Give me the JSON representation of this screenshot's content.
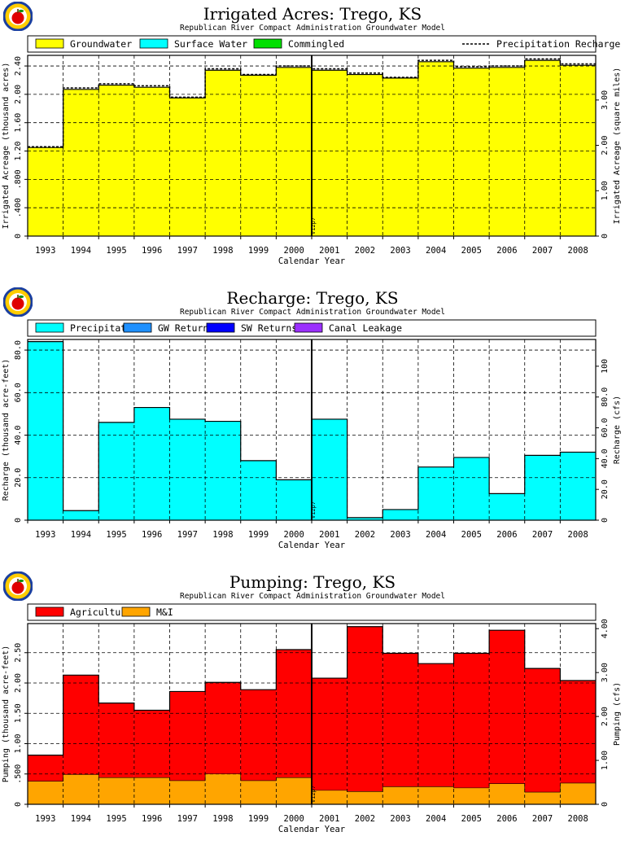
{
  "colors": {
    "groundwater": "#ffff00",
    "surface_water": "#00ffff",
    "commingled": "#00e000",
    "precipitation": "#00ffff",
    "gw_returns": "#1e90ff",
    "sw_returns": "#0000ff",
    "canal_leakage": "#9b30ff",
    "agricultural": "#ff0000",
    "mi": "#ffa500"
  },
  "chart_data": [
    {
      "type": "area",
      "title": "Irrigated Acres: Trego, KS",
      "subtitle": "Republican River Compact Administration Groundwater Model",
      "xlabel": "Calendar Year",
      "ylabel": "Irrigated Acreage (thousand acres)",
      "y2label": "Irrigated Acreage (square miles)",
      "categories": [
        "1993",
        "1994",
        "1995",
        "1996",
        "1997",
        "1998",
        "1999",
        "2000",
        "2001",
        "2002",
        "2003",
        "2004",
        "2005",
        "2006",
        "2007",
        "2008"
      ],
      "ylim": [
        0,
        2.55
      ],
      "yticks": [
        0,
        0.4,
        0.8,
        1.2,
        1.6,
        2.0,
        2.4
      ],
      "ytick_labels": [
        "0",
        ".400",
        ".800",
        "1.20",
        "1.60",
        "2.00",
        "2.40"
      ],
      "y2ticks": [
        0,
        1.0,
        2.0,
        3.0
      ],
      "y2tick_labels": [
        "0",
        "1.00",
        "2.00",
        "3.00"
      ],
      "y2_per_y": 1.5625,
      "series": [
        {
          "name": "Groundwater",
          "values": [
            1.25,
            2.07,
            2.13,
            2.1,
            1.95,
            2.34,
            2.27,
            2.38,
            2.34,
            2.28,
            2.23,
            2.46,
            2.37,
            2.38,
            2.48,
            2.41
          ]
        },
        {
          "name": "Surface Water",
          "values": [
            0,
            0,
            0,
            0,
            0,
            0,
            0,
            0,
            0,
            0,
            0,
            0,
            0,
            0,
            0,
            0
          ]
        },
        {
          "name": "Commingled",
          "values": [
            0,
            0,
            0,
            0,
            0,
            0,
            0,
            0,
            0,
            0,
            0,
            0,
            0,
            0,
            0,
            0
          ]
        }
      ],
      "line_series": {
        "name": "Precipitation Recharge Credit Acreage",
        "values": [
          1.26,
          2.09,
          2.15,
          2.12,
          1.96,
          2.36,
          2.28,
          2.4,
          2.36,
          2.3,
          2.24,
          2.48,
          2.39,
          2.4,
          2.5,
          2.43
        ]
      },
      "marker": {
        "label": "V12p7",
        "after_index": 7
      },
      "grid": true,
      "legend": "top"
    },
    {
      "type": "area",
      "title": "Recharge: Trego, KS",
      "subtitle": "Republican River Compact Administration Groundwater Model",
      "xlabel": "Calendar Year",
      "ylabel": "Recharge (thousand acre-feet)",
      "y2label": "Recharge (cfs)",
      "categories": [
        "1993",
        "1994",
        "1995",
        "1996",
        "1997",
        "1998",
        "1999",
        "2000",
        "2001",
        "2002",
        "2003",
        "2004",
        "2005",
        "2006",
        "2007",
        "2008"
      ],
      "ylim": [
        0,
        85
      ],
      "yticks": [
        0,
        20,
        40,
        60,
        80
      ],
      "ytick_labels": [
        "0",
        "20.0",
        "40.0",
        "60.0",
        "80.0"
      ],
      "y2ticks": [
        0,
        20,
        40,
        60,
        80,
        100
      ],
      "y2tick_labels": [
        "0",
        "20.0",
        "40.0",
        "60.0",
        "80.0",
        "100"
      ],
      "y2_per_y": 1.381,
      "series": [
        {
          "name": "Precipitation",
          "values": [
            84,
            4.5,
            46,
            53,
            47.5,
            46.5,
            28,
            19,
            47.5,
            1.2,
            5,
            25,
            29.5,
            12.5,
            30.5,
            32
          ]
        },
        {
          "name": "GW Returns",
          "values": [
            0,
            0,
            0,
            0,
            0,
            0,
            0,
            0,
            0,
            0,
            0,
            0,
            0,
            0,
            0,
            0
          ]
        },
        {
          "name": "SW Returns",
          "values": [
            0,
            0,
            0,
            0,
            0,
            0,
            0,
            0,
            0,
            0,
            0,
            0,
            0,
            0,
            0,
            0
          ]
        },
        {
          "name": "Canal Leakage",
          "values": [
            0,
            0,
            0,
            0,
            0,
            0,
            0,
            0,
            0,
            0,
            0,
            0,
            0,
            0,
            0,
            0
          ]
        }
      ],
      "marker": {
        "label": "V12p7",
        "after_index": 7
      },
      "grid": true,
      "legend": "top"
    },
    {
      "type": "area",
      "title": "Pumping: Trego, KS",
      "subtitle": "Republican River Compact Administration Groundwater Model",
      "xlabel": "Calendar Year",
      "ylabel": "Pumping (thousand acre-feet)",
      "y2label": "Pumping (cfs)",
      "categories": [
        "1993",
        "1994",
        "1995",
        "1996",
        "1997",
        "1998",
        "1999",
        "2000",
        "2001",
        "2002",
        "2003",
        "2004",
        "2005",
        "2006",
        "2007",
        "2008"
      ],
      "ylim": [
        0,
        2.98
      ],
      "yticks": [
        0,
        0.5,
        1.0,
        1.5,
        2.0,
        2.5
      ],
      "ytick_labels": [
        "0",
        ".500",
        "1.00",
        "1.50",
        "2.00",
        "2.50"
      ],
      "y2ticks": [
        0,
        1.0,
        2.0,
        3.0,
        4.0
      ],
      "y2tick_labels": [
        "0",
        "1.00",
        "2.00",
        "3.00",
        "4.00"
      ],
      "y2_per_y": 1.381,
      "series": [
        {
          "name": "Agricultural",
          "values": [
            0.43,
            1.64,
            1.23,
            1.11,
            1.47,
            1.51,
            1.5,
            2.11,
            1.85,
            2.72,
            2.2,
            2.03,
            2.22,
            2.53,
            2.04,
            1.69
          ]
        },
        {
          "name": "M&I",
          "values": [
            0.38,
            0.49,
            0.44,
            0.44,
            0.39,
            0.5,
            0.39,
            0.44,
            0.23,
            0.21,
            0.29,
            0.29,
            0.27,
            0.34,
            0.2,
            0.35
          ]
        }
      ],
      "marker": {
        "label": "V12p7",
        "after_index": 7
      },
      "grid": true,
      "legend": "top"
    }
  ]
}
